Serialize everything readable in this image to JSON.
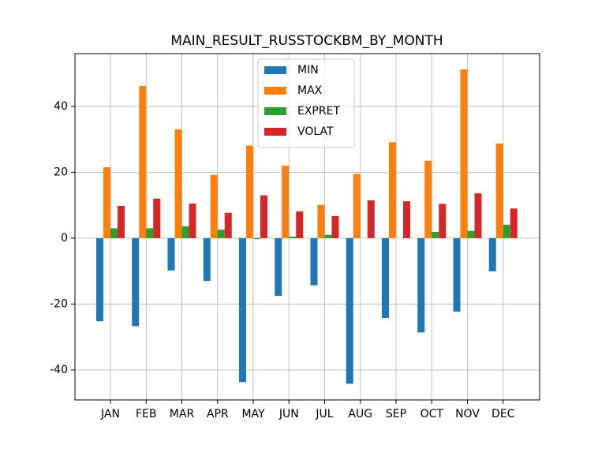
{
  "chart_data": {
    "type": "bar",
    "title": "MAIN_RESULT_RUSSTOCKBM_BY_MONTH",
    "categories": [
      "JAN",
      "FEB",
      "MAR",
      "APR",
      "MAY",
      "JUN",
      "JUL",
      "AUG",
      "SEP",
      "OCT",
      "NOV",
      "DEC"
    ],
    "series": [
      {
        "name": "MIN",
        "color": "#1f77b4",
        "values": [
          -25.2,
          -26.7,
          -9.8,
          -13.0,
          -43.7,
          -17.5,
          -14.3,
          -44.2,
          -24.2,
          -28.6,
          -22.3,
          -10.1
        ]
      },
      {
        "name": "MAX",
        "color": "#ff7f0e",
        "values": [
          21.5,
          46.2,
          33.0,
          19.2,
          28.1,
          22.0,
          10.1,
          19.5,
          29.1,
          23.5,
          51.2,
          28.7
        ]
      },
      {
        "name": "EXPRET",
        "color": "#2ca02c",
        "values": [
          3.0,
          3.0,
          3.6,
          2.6,
          -0.3,
          0.5,
          1.0,
          0.0,
          0.0,
          1.9,
          2.2,
          4.1
        ]
      },
      {
        "name": "VOLAT",
        "color": "#d62728",
        "values": [
          9.8,
          12.0,
          10.5,
          7.7,
          13.0,
          8.1,
          6.7,
          11.5,
          11.2,
          10.4,
          13.6,
          9.0
        ]
      }
    ],
    "ylim": [
      -49.1,
      56.0
    ],
    "yticks": [
      -40,
      -20,
      0,
      20,
      40
    ],
    "grid": true,
    "legend": "upper center"
  }
}
